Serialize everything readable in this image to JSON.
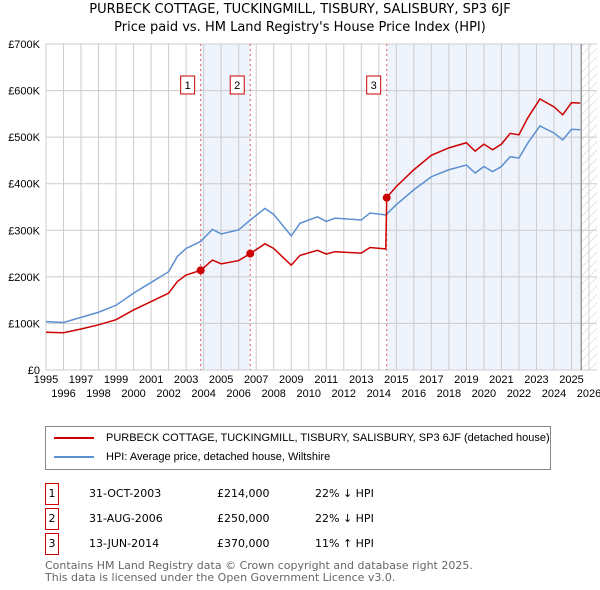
{
  "chart_data": {
    "type": "line",
    "title": "PURBECK COTTAGE, TUCKINGMILL, TISBURY, SALISBURY, SP3 6JF",
    "subtitle": "Price paid vs. HM Land Registry's House Price Index (HPI)",
    "xlim": [
      1995,
      2026
    ],
    "ylim": [
      0,
      700000
    ],
    "yticks": [
      {
        "v": 0,
        "label": "£0"
      },
      {
        "v": 100000,
        "label": "£100K"
      },
      {
        "v": 200000,
        "label": "£200K"
      },
      {
        "v": 300000,
        "label": "£300K"
      },
      {
        "v": 400000,
        "label": "£400K"
      },
      {
        "v": 500000,
        "label": "£500K"
      },
      {
        "v": 600000,
        "label": "£600K"
      },
      {
        "v": 700000,
        "label": "£700K"
      }
    ],
    "xticks": [
      "1995",
      "1996",
      "1997",
      "1998",
      "1999",
      "2000",
      "2001",
      "2002",
      "2003",
      "2004",
      "2005",
      "2006",
      "2007",
      "2008",
      "2009",
      "2010",
      "2011",
      "2012",
      "2013",
      "2014",
      "2015",
      "2016",
      "2017",
      "2018",
      "2019",
      "2020",
      "2021",
      "2022",
      "2023",
      "2024",
      "2025",
      "2026"
    ],
    "series": [
      {
        "name": "PURBECK COTTAGE, TUCKINGMILL, TISBURY, SALISBURY, SP3 6JF (detached house)",
        "color": "#cc0000",
        "x": [
          1995,
          1996,
          1997,
          1998,
          1999,
          2000,
          2001,
          2002,
          2002.5,
          2003,
          2003.83,
          2004.5,
          2005,
          2006,
          2006.66,
          2007.5,
          2008,
          2009,
          2009.5,
          2010.5,
          2011,
          2011.5,
          2013,
          2013.5,
          2014.4,
          2014.45,
          2015,
          2016,
          2017,
          2018,
          2019,
          2019.5,
          2020,
          2020.5,
          2021,
          2021.5,
          2022,
          2022.5,
          2023.2,
          2024,
          2024.5,
          2025,
          2025.5
        ],
        "y": [
          81000,
          80000,
          88000,
          97000,
          108000,
          129000,
          147000,
          165000,
          190000,
          204000,
          214000,
          236000,
          228000,
          235000,
          250000,
          271000,
          261000,
          225000,
          246000,
          257000,
          249000,
          254000,
          251000,
          263000,
          260000,
          370000,
          394000,
          430000,
          461000,
          477000,
          488000,
          470000,
          485000,
          473000,
          485000,
          508000,
          505000,
          541000,
          582000,
          565000,
          548000,
          574000,
          573000
        ]
      },
      {
        "name": "HPI: Average price, detached house, Wiltshire",
        "color": "#5b8fd0",
        "x": [
          1995,
          1996,
          1997,
          1998,
          1999,
          2000,
          2001,
          2002,
          2002.5,
          2003,
          2003.83,
          2004.5,
          2005,
          2006,
          2006.66,
          2007.5,
          2008,
          2009,
          2009.5,
          2010.5,
          2011,
          2011.5,
          2013,
          2013.5,
          2014.4,
          2015,
          2016,
          2017,
          2018,
          2019,
          2019.5,
          2020,
          2020.5,
          2021,
          2021.5,
          2022,
          2022.5,
          2023.2,
          2024,
          2024.5,
          2025,
          2025.5
        ],
        "y": [
          104000,
          102000,
          113000,
          124000,
          139000,
          165000,
          188000,
          211000,
          244000,
          261000,
          276000,
          302000,
          292000,
          301000,
          322000,
          347000,
          334000,
          288000,
          315000,
          329000,
          319000,
          326000,
          322000,
          337000,
          333000,
          355000,
          387000,
          415000,
          430000,
          440000,
          423000,
          437000,
          426000,
          437000,
          458000,
          455000,
          487000,
          524000,
          509000,
          494000,
          517000,
          516000
        ]
      }
    ],
    "sales": [
      {
        "n": "1",
        "x": 2003.83,
        "y": 214000,
        "date": "31-OCT-2003",
        "price": "£214,000",
        "hpi": "22% ↓ HPI"
      },
      {
        "n": "2",
        "x": 2006.66,
        "y": 250000,
        "date": "31-AUG-2006",
        "price": "£250,000",
        "hpi": "22% ↓ HPI"
      },
      {
        "n": "3",
        "x": 2014.45,
        "y": 370000,
        "date": "13-JUN-2014",
        "price": "£370,000",
        "hpi": "11% ↑ HPI"
      }
    ],
    "data_end": 2025.5,
    "legend_placement": "below"
  },
  "footer": {
    "line1": "Contains HM Land Registry data © Crown copyright and database right 2025.",
    "line2": "This data is licensed under the Open Government Licence v3.0."
  }
}
